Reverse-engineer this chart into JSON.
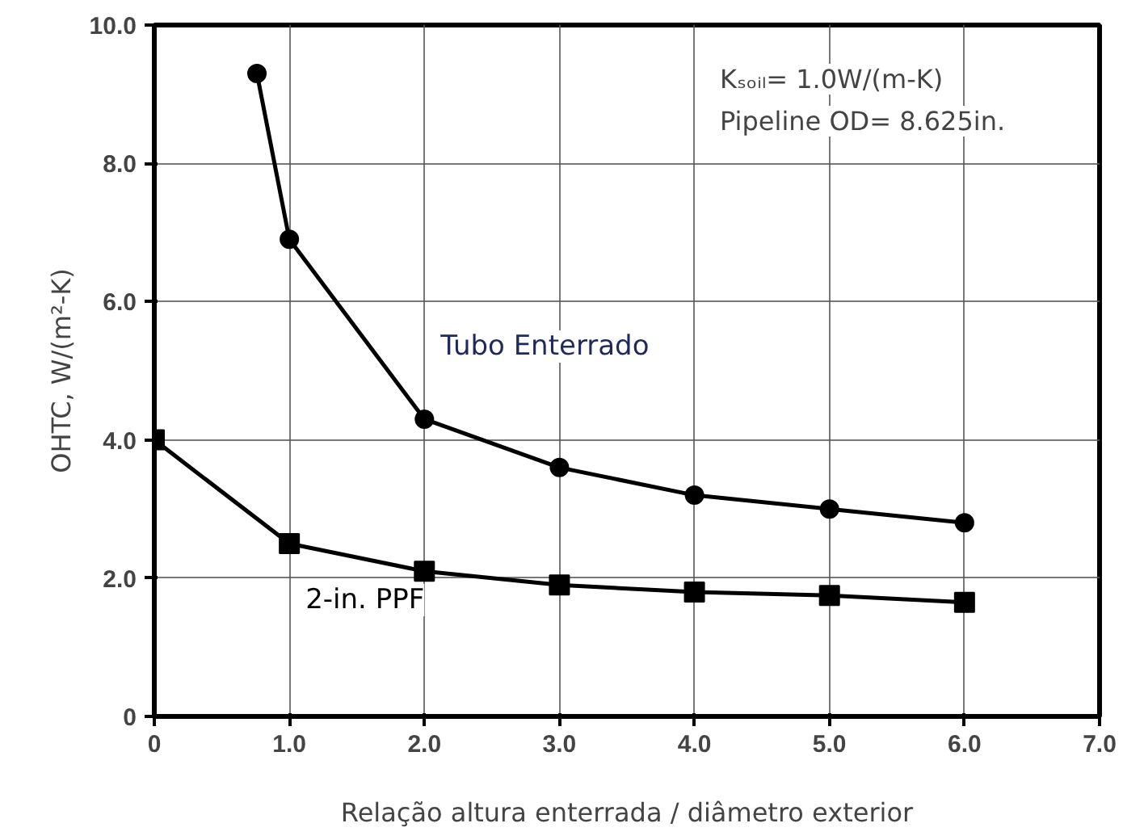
{
  "chart_data": {
    "type": "line",
    "xlabel": "Relação altura enterrada / diâmetro exterior",
    "ylabel": "OHTC, W/(m²-K)",
    "xlim": [
      0,
      7
    ],
    "ylim": [
      0,
      10
    ],
    "xticks": [
      0,
      {
        "value": 1,
        "label": "1.0"
      },
      {
        "value": 2,
        "label": "2.0"
      },
      {
        "value": 3,
        "label": "3.0"
      },
      {
        "value": 4,
        "label": "4.0"
      },
      {
        "value": 5,
        "label": "5.0"
      },
      {
        "value": 6,
        "label": "6.0"
      },
      {
        "value": 7,
        "label": "7.0"
      }
    ],
    "yticks": [
      0,
      {
        "value": 2,
        "label": "2.0"
      },
      {
        "value": 4,
        "label": "4.0"
      },
      {
        "value": 6,
        "label": "6.0"
      },
      {
        "value": 8,
        "label": "8.0"
      },
      {
        "value": 10,
        "label": "10.0"
      }
    ],
    "grid": true,
    "line_style": "solid",
    "series": [
      {
        "name": "Tubo Enterrado",
        "color": "#000000",
        "marker": "circle",
        "x": [
          0.76,
          1,
          2,
          3,
          4,
          5,
          6
        ],
        "values": [
          9.3,
          6.9,
          4.3,
          3.6,
          3.2,
          3.0,
          2.8
        ]
      },
      {
        "name": "2-in. PPF",
        "color": "#000000",
        "marker": "square",
        "x": [
          0,
          1,
          2,
          3,
          4,
          5,
          6
        ],
        "values": [
          4.0,
          2.5,
          2.1,
          1.9,
          1.8,
          1.75,
          1.65
        ]
      }
    ],
    "annotations": [
      "Kₛₒᵢₗ= 1.0W/(m-K)",
      "Pipeline OD= 8.625in."
    ]
  }
}
